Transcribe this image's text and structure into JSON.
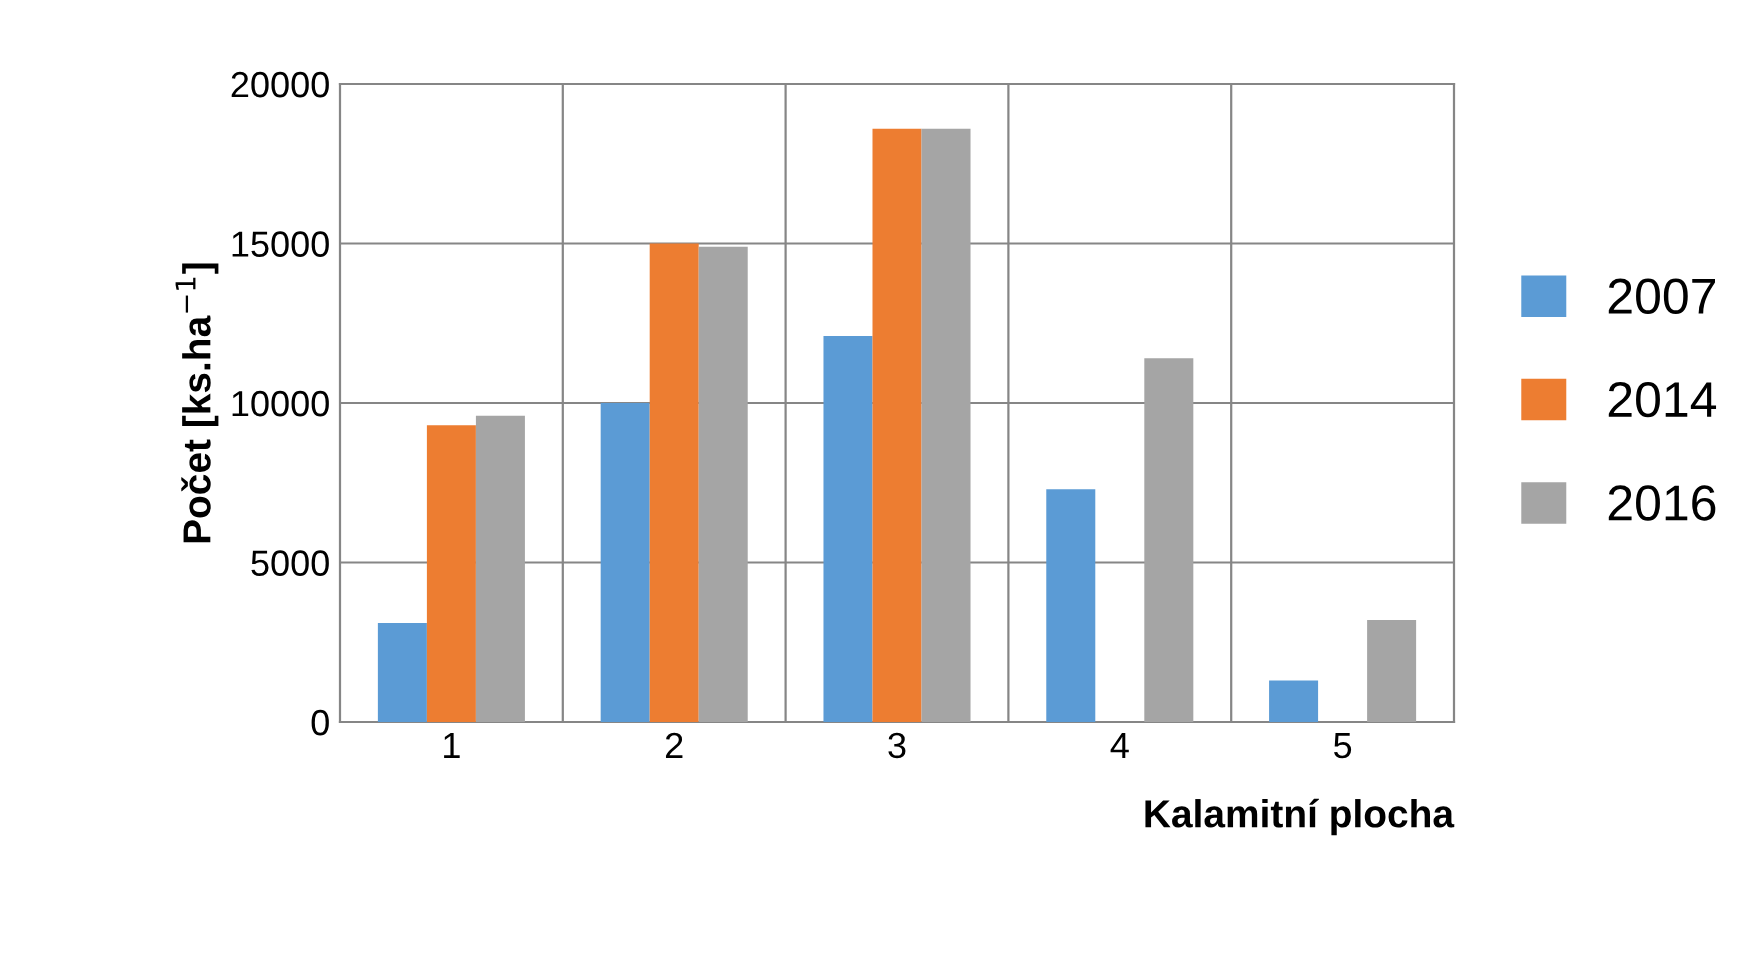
{
  "chart_data": {
    "type": "bar",
    "xlabel": "Kalamitní plocha",
    "ylabel": "Počet [ks.ha$^{−1}$]",
    "categories": [
      "1",
      "2",
      "3",
      "4",
      "5"
    ],
    "series": [
      {
        "name": "2007",
        "color": "#5b9bd5",
        "values": [
          3100,
          10000,
          12100,
          7300,
          1300
        ]
      },
      {
        "name": "2014",
        "color": "#ed7d31",
        "values": [
          9300,
          15000,
          18600,
          null,
          null
        ]
      },
      {
        "name": "2016",
        "color": "#a5a5a5",
        "values": [
          9600,
          14900,
          18600,
          11400,
          3200
        ]
      }
    ],
    "ylim": [
      0,
      20000
    ],
    "yticks": [
      0,
      5000,
      10000,
      15000,
      20000
    ],
    "grid": true,
    "legend": "right"
  }
}
